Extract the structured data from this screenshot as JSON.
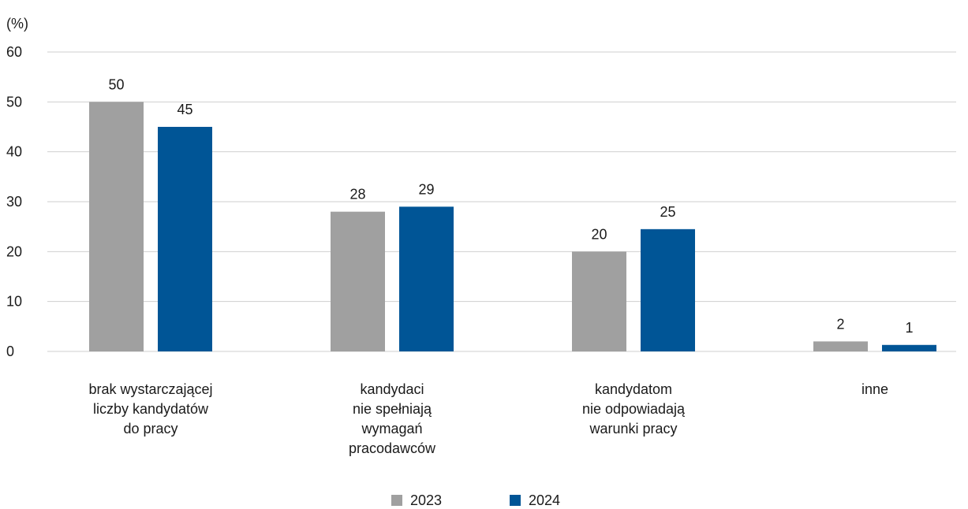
{
  "chart_data": {
    "type": "bar",
    "unit_label": "(%)",
    "categories": [
      [
        "brak wystarczającej",
        "liczby kandydatów",
        "do pracy"
      ],
      [
        "kandydaci",
        "nie spełniają",
        "wymagań",
        "pracodawców"
      ],
      [
        "kandydatom",
        "nie odpowiadają",
        "warunki pracy"
      ],
      [
        "inne"
      ]
    ],
    "series": [
      {
        "name": "2023",
        "color": "#a0a0a0",
        "values": [
          50,
          28,
          20,
          2
        ],
        "labels": [
          "50",
          "28",
          "20",
          "2"
        ]
      },
      {
        "name": "2024",
        "color": "#005596",
        "values": [
          45,
          29,
          24.5,
          1.3
        ],
        "labels": [
          "45",
          "29",
          "25",
          "1"
        ]
      }
    ],
    "ylim": [
      0,
      60
    ],
    "yticks": [
      0,
      10,
      20,
      30,
      40,
      50,
      60
    ],
    "grid": true,
    "legend": "bottom-center"
  }
}
